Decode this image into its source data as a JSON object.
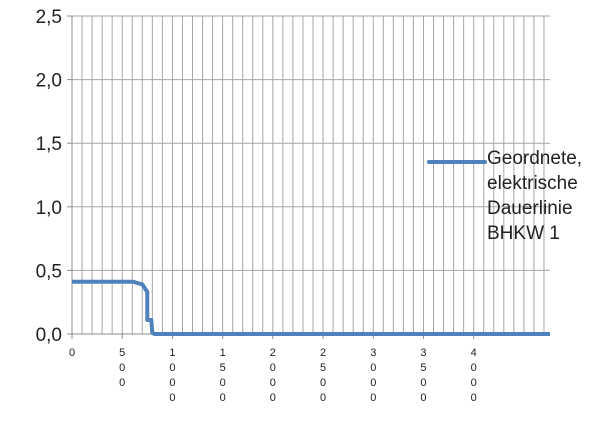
{
  "chart_data": {
    "type": "line",
    "title": "",
    "xlabel": "",
    "ylabel": "",
    "ylim": [
      0,
      2.5
    ],
    "xlim": [
      0,
      4760
    ],
    "y_ticks": [
      "0,0",
      "0,5",
      "1,0",
      "1,5",
      "2,0",
      "2,5"
    ],
    "y_tick_values": [
      0,
      0.5,
      1.0,
      1.5,
      2.0,
      2.5
    ],
    "x_ticks": [
      {
        "value": 0,
        "label": "0"
      },
      {
        "value": 500,
        "label": "500"
      },
      {
        "value": 1000,
        "label": "1000"
      },
      {
        "value": 1500,
        "label": "1500"
      },
      {
        "value": 2000,
        "label": "2000"
      },
      {
        "value": 2500,
        "label": "2500"
      },
      {
        "value": 3000,
        "label": "3000"
      },
      {
        "value": 3500,
        "label": "3500"
      },
      {
        "value": 4000,
        "label": "4000"
      }
    ],
    "grid": true,
    "vertical_grid_step": 100,
    "legend_position": "right",
    "series": [
      {
        "name": "Geordnete, elektrische Dauerlinie BHKW 1",
        "color": "#4f81bd",
        "x": [
          0,
          610,
          700,
          750,
          750,
          790,
          800,
          820,
          4760
        ],
        "y": [
          0.41,
          0.41,
          0.39,
          0.33,
          0.11,
          0.11,
          0.01,
          0.0,
          0.0
        ]
      }
    ]
  }
}
